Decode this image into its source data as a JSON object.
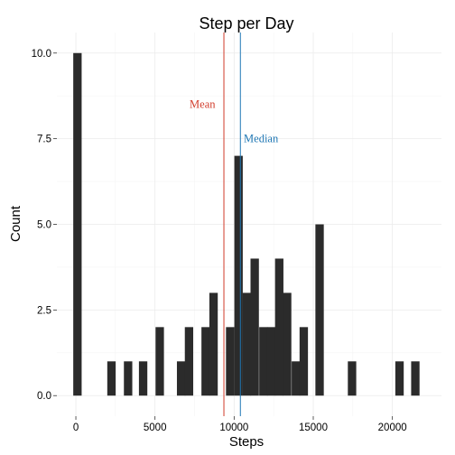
{
  "chart_data": {
    "type": "bar",
    "title": "Step per Day",
    "xlabel": "Steps",
    "ylabel": "Count",
    "xlim": [
      -1200,
      23100
    ],
    "ylim": [
      -0.6,
      10.6
    ],
    "bin_width": 530,
    "x_ticks": [
      0,
      5000,
      10000,
      15000,
      20000
    ],
    "x_tick_labels": [
      "0",
      "5000",
      "10000",
      "15000",
      "20000"
    ],
    "y_ticks": [
      0,
      2.5,
      5,
      7.5,
      10
    ],
    "y_tick_labels": [
      "0.0",
      "2.5",
      "5.0",
      "7.5",
      "10.0"
    ],
    "grid": true,
    "bar_color": "#2b2b2b",
    "bins": [
      {
        "x": 100,
        "count": 10
      },
      {
        "x": 2250,
        "count": 1
      },
      {
        "x": 3300,
        "count": 1
      },
      {
        "x": 4250,
        "count": 1
      },
      {
        "x": 5300,
        "count": 2
      },
      {
        "x": 6650,
        "count": 1
      },
      {
        "x": 7150,
        "count": 2
      },
      {
        "x": 8200,
        "count": 2
      },
      {
        "x": 8700,
        "count": 3
      },
      {
        "x": 9750,
        "count": 2
      },
      {
        "x": 10280,
        "count": 7
      },
      {
        "x": 10800,
        "count": 3
      },
      {
        "x": 11300,
        "count": 4
      },
      {
        "x": 11850,
        "count": 2
      },
      {
        "x": 12350,
        "count": 2
      },
      {
        "x": 12850,
        "count": 4
      },
      {
        "x": 13350,
        "count": 3
      },
      {
        "x": 13900,
        "count": 1
      },
      {
        "x": 14400,
        "count": 2
      },
      {
        "x": 15400,
        "count": 5
      },
      {
        "x": 17450,
        "count": 1
      },
      {
        "x": 20450,
        "count": 1
      },
      {
        "x": 21450,
        "count": 1
      }
    ],
    "reference_lines": [
      {
        "label": "Mean",
        "value": 9354,
        "color": "#d13b2a",
        "label_x": 8000,
        "label_y": 8.5
      },
      {
        "label": "Median",
        "value": 10395,
        "color": "#1f77b4",
        "label_x": 11700,
        "label_y": 7.5
      }
    ]
  }
}
